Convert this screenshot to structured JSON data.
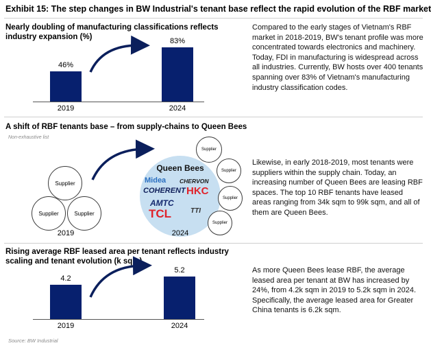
{
  "exhibit_title": "Exhibit 15: The step changes in BW Industrial's tenant base reflect the rapid evolution of the RBF market",
  "sections": [
    {
      "title": "Nearly doubling of manufacturing classifications reflects industry expansion (%)",
      "description": "Compared to the early stages of Vietnam's RBF market in 2018-2019, BW's tenant profile was more concentrated towards electronics and machinery. Today, FDI in manufacturing is widespread across all industries. Currently, BW hosts over 400 tenants spanning over 83% of Vietnam's manufacturing industry classification codes."
    },
    {
      "title": "A shift of RBF tenants base – from supply-chains to Queen Bees",
      "note": "Non-exhaustive list",
      "description": "Likewise, in early 2018-2019, most tenants were suppliers within the supply chain. Today, an increasing number of Queen Bees are leasing RBF spaces. The top 10 RBF tenants have leased areas ranging from 34k sqm to 99k sqm, and all of them are Queen Bees.",
      "year_2019": "2019",
      "year_2024": "2024",
      "supplier_label": "Supplier",
      "queen_bees_label": "Queen Bees",
      "brands": [
        "Midea",
        "CHERVON",
        "COHERENT",
        "HKC",
        "AMTC",
        "TCL",
        "TTI"
      ]
    },
    {
      "title": "Rising average RBF leased area per tenant reflects industry scaling and tenant evolution (k sqm)",
      "description": "As more Queen Bees lease RBF, the average leased area per tenant at BW has increased by 24%, from 4.2k sqm in 2019 to 5.2k sqm in 2024. Specifically, the average leased area for Greater China tenants is 6.2k sqm."
    }
  ],
  "chart_data": [
    {
      "type": "bar",
      "title": "Nearly doubling of manufacturing classifications reflects industry expansion (%)",
      "categories": [
        "2019",
        "2024"
      ],
      "values": [
        46,
        83
      ],
      "data_labels": [
        "46%",
        "83%"
      ],
      "ylim": [
        0,
        100
      ],
      "color": "#07206e"
    },
    {
      "type": "bar",
      "title": "Rising average RBF leased area per tenant reflects industry scaling and tenant evolution (k sqm)",
      "categories": [
        "2019",
        "2024"
      ],
      "values": [
        4.2,
        5.2
      ],
      "data_labels": [
        "4.2",
        "5.2"
      ],
      "ylim": [
        0,
        6.0
      ],
      "color": "#07206e"
    }
  ],
  "source": "Source: BW Industrial",
  "colors": {
    "bar": "#07206e",
    "arrow": "#0b1f5c",
    "queen_bee_fill": "#c7dff1"
  }
}
